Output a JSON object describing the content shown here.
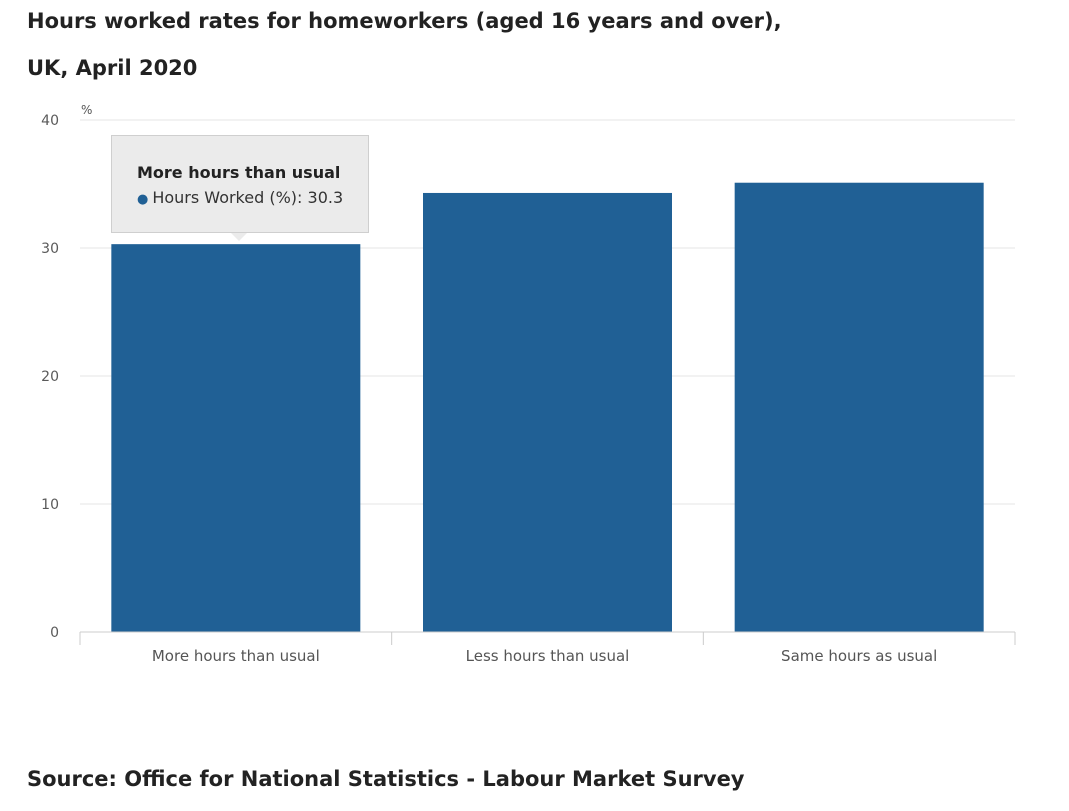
{
  "title": {
    "line1": "Hours worked rates for homeworkers (aged 16 years and over),",
    "line2": "UK, April 2020"
  },
  "chart_data": {
    "type": "bar",
    "unit": "%",
    "categories": [
      "More hours than usual",
      "Less hours than usual",
      "Same hours as usual"
    ],
    "series": [
      {
        "name": "Hours Worked (%)",
        "values": [
          30.3,
          34.3,
          35.1
        ],
        "color": "#206095"
      }
    ],
    "yticks": [
      0,
      10,
      20,
      30,
      40
    ],
    "ylim": [
      0,
      40
    ],
    "grid": true
  },
  "tooltip": {
    "title": "More hours than usual",
    "series_name": "Hours Worked (%)",
    "value": "30.3"
  },
  "source": "Source: Office for National Statistics - Labour Market Survey"
}
